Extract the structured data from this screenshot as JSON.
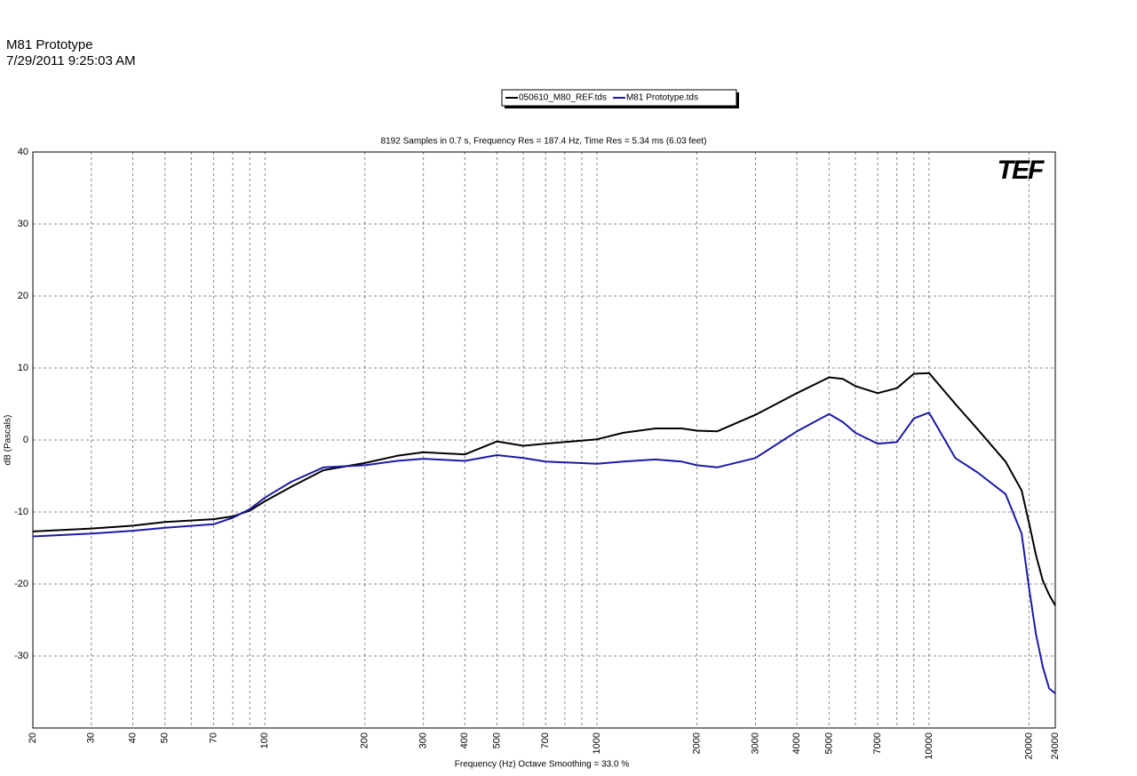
{
  "chart_data": {
    "type": "line",
    "title": "M81 Prototype",
    "date": "7/29/2011 9:25:03 AM",
    "subtitle": "8192 Samples in 0.7 s, Frequency Res = 187.4 Hz, Time Res = 5.34 ms (6.03 feet)",
    "xlabel": "Frequency (Hz) Octave Smoothing = 33.0 %",
    "ylabel": "dB (Pascals)",
    "logo": "TEF",
    "xscale": "log",
    "grid": true,
    "x": [
      20,
      30,
      40,
      50,
      70,
      80,
      90,
      100,
      120,
      150,
      200,
      250,
      300,
      400,
      500,
      600,
      700,
      1000,
      1200,
      1500,
      1800,
      2000,
      2300,
      3000,
      4000,
      5000,
      5500,
      6000,
      7000,
      8000,
      9000,
      10000,
      12000,
      14000,
      17000,
      19000,
      20000,
      21000,
      22000,
      23000,
      24000
    ],
    "series": [
      {
        "name": "050610_M80_REF.tds",
        "color": "#000000",
        "values": [
          -12.7,
          -12.3,
          -11.9,
          -11.4,
          -11.0,
          -10.6,
          -9.8,
          -8.5,
          -6.5,
          -4.2,
          -3.2,
          -2.2,
          -1.7,
          -2.0,
          -0.2,
          -0.8,
          -0.5,
          0.1,
          1.0,
          1.6,
          1.6,
          1.3,
          1.2,
          3.5,
          6.5,
          8.7,
          8.5,
          7.5,
          6.5,
          7.2,
          9.2,
          9.3,
          5.0,
          1.5,
          -3.0,
          -7.0,
          -11.5,
          -16.0,
          -19.5,
          -21.5,
          -23.0
        ]
      },
      {
        "name": "M81 Prototype.tds",
        "color": "#1a1aa6",
        "values": [
          -13.4,
          -13.0,
          -12.6,
          -12.2,
          -11.7,
          -10.8,
          -9.6,
          -8.0,
          -5.8,
          -3.8,
          -3.5,
          -2.9,
          -2.6,
          -2.9,
          -2.1,
          -2.5,
          -3.0,
          -3.3,
          -3.0,
          -2.7,
          -3.0,
          -3.5,
          -3.8,
          -2.5,
          1.2,
          3.6,
          2.5,
          1.0,
          -0.5,
          -0.3,
          3.0,
          3.8,
          -2.5,
          -4.5,
          -7.5,
          -13.0,
          -20.5,
          -27.0,
          -31.5,
          -34.5,
          -35.2
        ]
      }
    ],
    "xlim": [
      20,
      24000
    ],
    "xticks": [
      20,
      30,
      40,
      50,
      70,
      100,
      200,
      300,
      400,
      500,
      700,
      1000,
      2000,
      3000,
      4000,
      5000,
      7000,
      10000,
      20000,
      24000
    ],
    "x_minor_grid": [
      60,
      80,
      90,
      600,
      800,
      900,
      6000,
      8000,
      9000
    ],
    "ylim": [
      -40,
      40
    ],
    "yticks": [
      -30,
      -20,
      -10,
      0,
      10,
      20,
      30,
      40
    ]
  }
}
